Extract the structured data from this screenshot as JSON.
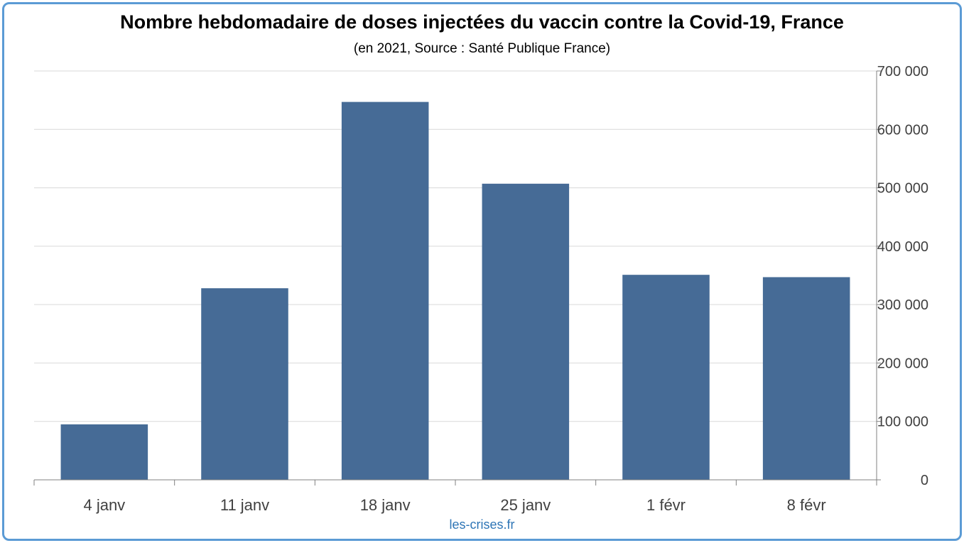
{
  "title": "Nombre hebdomadaire de doses injectées du vaccin contre la Covid-19, France",
  "subtitle": "(en 2021, Source : Santé Publique France)",
  "watermark": "les-crises.fr",
  "colors": {
    "bar": "#466b96",
    "frame": "#5b9bd5",
    "grid": "#d9d9d9",
    "axis": "#808080",
    "watermark": "#2e75b6"
  },
  "chart_data": {
    "type": "bar",
    "categories": [
      "4 janv",
      "11 janv",
      "18 janv",
      "25 janv",
      "1 févr",
      "8 févr"
    ],
    "values": [
      95000,
      328000,
      647000,
      507000,
      351000,
      347000
    ],
    "ylim": [
      0,
      700000
    ],
    "yticks": [
      0,
      100000,
      200000,
      300000,
      400000,
      500000,
      600000,
      700000
    ],
    "ytick_labels": [
      "0",
      "100 000",
      "200 000",
      "300 000",
      "400 000",
      "500 000",
      "600 000",
      "700 000"
    ],
    "y_axis_side": "right",
    "grid": true,
    "legend": "none"
  }
}
